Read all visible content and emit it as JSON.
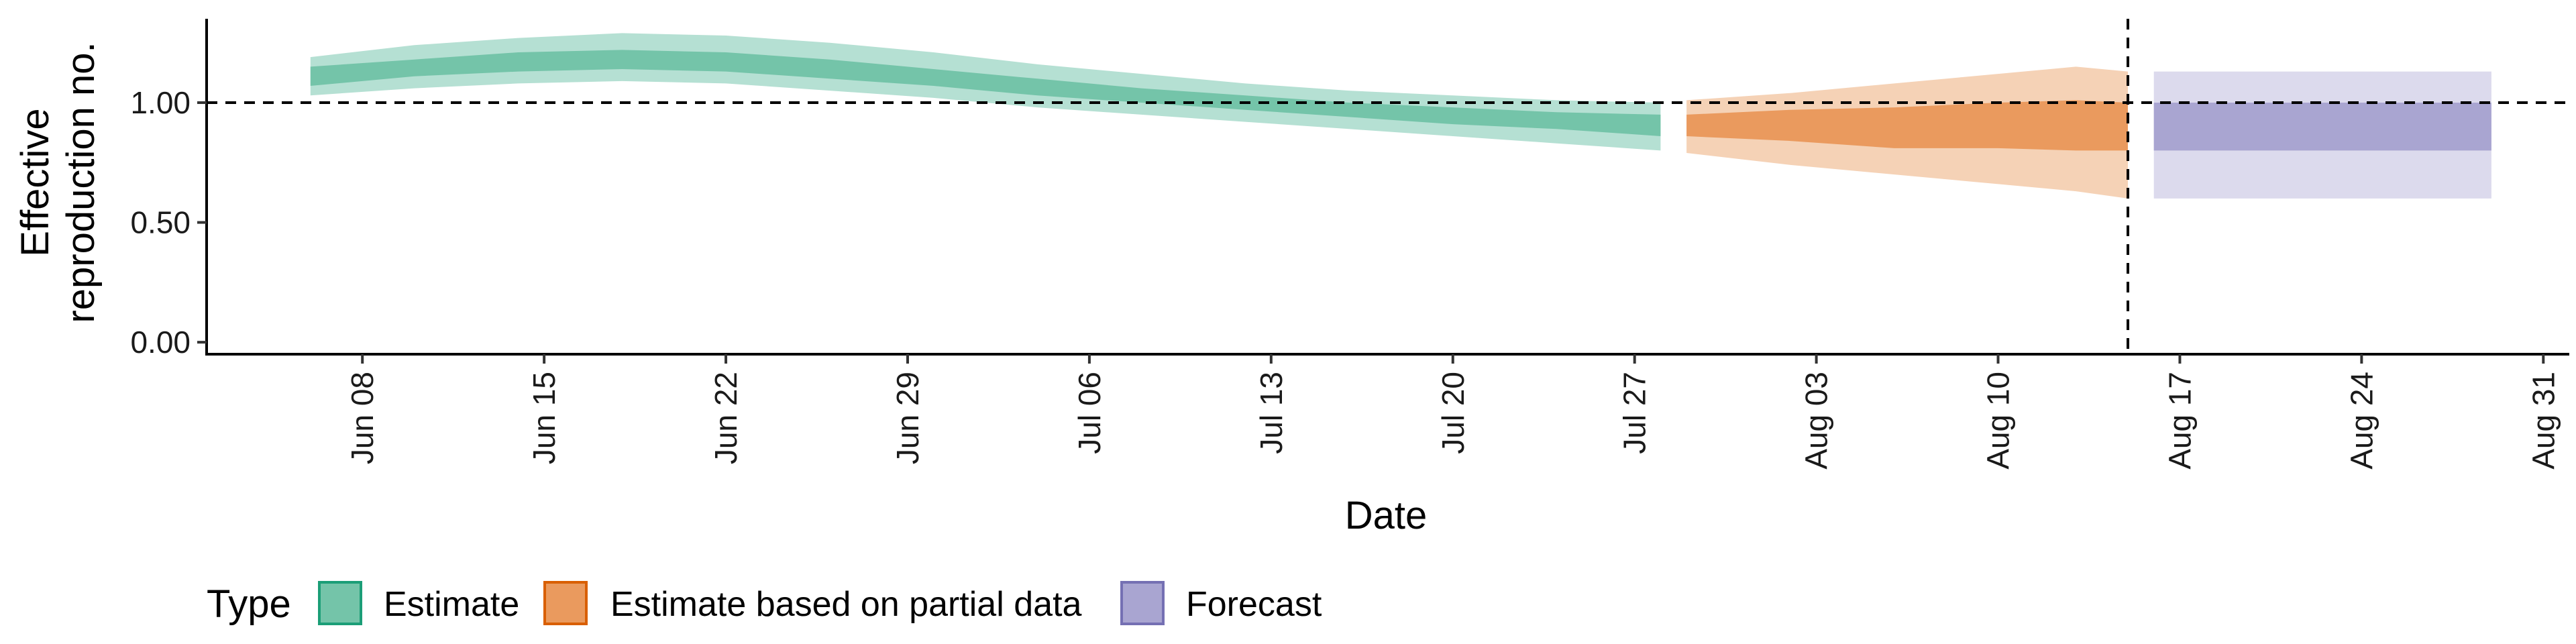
{
  "chart_data": {
    "type": "area",
    "xlabel": "Date",
    "ylabel_lines": [
      "Effective",
      "reproduction no."
    ],
    "y_ticks": [
      0.0,
      0.5,
      1.0
    ],
    "y_tick_labels": [
      "0.00",
      "0.50",
      "1.00"
    ],
    "ylim": [
      -0.05,
      1.35
    ],
    "xlim": [
      "2020-06-02",
      "2020-09-01"
    ],
    "x_ticks": [
      "2020-06-08",
      "2020-06-15",
      "2020-06-22",
      "2020-06-29",
      "2020-07-06",
      "2020-07-13",
      "2020-07-20",
      "2020-07-27",
      "2020-08-03",
      "2020-08-10",
      "2020-08-17",
      "2020-08-24",
      "2020-08-31"
    ],
    "x_tick_labels": [
      "Jun 08",
      "Jun 15",
      "Jun 22",
      "Jun 29",
      "Jul 06",
      "Jul 13",
      "Jul 20",
      "Jul 27",
      "Aug 03",
      "Aug 10",
      "Aug 17",
      "Aug 24",
      "Aug 31"
    ],
    "reference_lines": {
      "horizontal_y": 1.0,
      "vertical_x": "2020-08-15"
    },
    "legend": {
      "title": "Type",
      "position": "bottom-left"
    },
    "series": [
      {
        "name": "Estimate",
        "color": "#1b9e77",
        "points": [
          {
            "x": "2020-06-06",
            "lo90": 1.03,
            "hi90": 1.19,
            "lo50": 1.07,
            "hi50": 1.15
          },
          {
            "x": "2020-06-10",
            "lo90": 1.06,
            "hi90": 1.24,
            "lo50": 1.11,
            "hi50": 1.18
          },
          {
            "x": "2020-06-14",
            "lo90": 1.08,
            "hi90": 1.27,
            "lo50": 1.13,
            "hi50": 1.21
          },
          {
            "x": "2020-06-18",
            "lo90": 1.09,
            "hi90": 1.29,
            "lo50": 1.14,
            "hi50": 1.22
          },
          {
            "x": "2020-06-22",
            "lo90": 1.08,
            "hi90": 1.28,
            "lo50": 1.13,
            "hi50": 1.21
          },
          {
            "x": "2020-06-26",
            "lo90": 1.05,
            "hi90": 1.25,
            "lo50": 1.1,
            "hi50": 1.18
          },
          {
            "x": "2020-06-30",
            "lo90": 1.02,
            "hi90": 1.21,
            "lo50": 1.07,
            "hi50": 1.14
          },
          {
            "x": "2020-07-04",
            "lo90": 0.98,
            "hi90": 1.16,
            "lo50": 1.03,
            "hi50": 1.1
          },
          {
            "x": "2020-07-08",
            "lo90": 0.95,
            "hi90": 1.12,
            "lo50": 1.0,
            "hi50": 1.06
          },
          {
            "x": "2020-07-12",
            "lo90": 0.92,
            "hi90": 1.08,
            "lo50": 0.97,
            "hi50": 1.03
          },
          {
            "x": "2020-07-16",
            "lo90": 0.89,
            "hi90": 1.05,
            "lo50": 0.94,
            "hi50": 1.0
          },
          {
            "x": "2020-07-20",
            "lo90": 0.86,
            "hi90": 1.03,
            "lo50": 0.91,
            "hi50": 0.98
          },
          {
            "x": "2020-07-24",
            "lo90": 0.83,
            "hi90": 1.01,
            "lo50": 0.89,
            "hi50": 0.96
          },
          {
            "x": "2020-07-28",
            "lo90": 0.8,
            "hi90": 1.0,
            "lo50": 0.86,
            "hi50": 0.95
          }
        ]
      },
      {
        "name": "Estimate based on partial data",
        "color": "#d95f02",
        "points": [
          {
            "x": "2020-07-29",
            "lo90": 0.79,
            "hi90": 1.01,
            "lo50": 0.86,
            "hi50": 0.95
          },
          {
            "x": "2020-08-02",
            "lo90": 0.74,
            "hi90": 1.04,
            "lo50": 0.84,
            "hi50": 0.97
          },
          {
            "x": "2020-08-06",
            "lo90": 0.7,
            "hi90": 1.08,
            "lo50": 0.81,
            "hi50": 0.98
          },
          {
            "x": "2020-08-10",
            "lo90": 0.66,
            "hi90": 1.12,
            "lo50": 0.81,
            "hi50": 1.0
          },
          {
            "x": "2020-08-13",
            "lo90": 0.63,
            "hi90": 1.15,
            "lo50": 0.8,
            "hi50": 1.01
          },
          {
            "x": "2020-08-15",
            "lo90": 0.6,
            "hi90": 1.13,
            "lo50": 0.8,
            "hi50": 1.0
          }
        ]
      },
      {
        "name": "Forecast",
        "color": "#7570b3",
        "points": [
          {
            "x": "2020-08-16",
            "lo90": 0.6,
            "hi90": 1.13,
            "lo50": 0.8,
            "hi50": 1.0
          },
          {
            "x": "2020-08-29",
            "lo90": 0.6,
            "hi90": 1.13,
            "lo50": 0.8,
            "hi50": 1.0
          }
        ]
      }
    ]
  }
}
